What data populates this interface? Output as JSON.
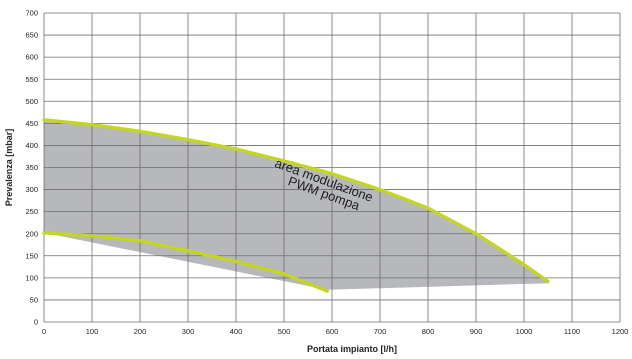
{
  "chart_data": {
    "type": "area",
    "title": "",
    "xlabel": "Portata impianto [l/h]",
    "ylabel": "Prevalenza [mbar]",
    "xlim": [
      0,
      1200
    ],
    "ylim": [
      0,
      700
    ],
    "x_ticks": [
      0,
      100,
      200,
      300,
      400,
      500,
      600,
      700,
      800,
      900,
      1000,
      1100,
      1200
    ],
    "y_ticks": [
      0,
      50,
      100,
      150,
      200,
      250,
      300,
      350,
      400,
      450,
      500,
      550,
      600,
      650,
      700
    ],
    "grid": true,
    "annotation": [
      "area modulazione",
      "PWM pompa"
    ],
    "colors": {
      "area": "#b7b8bc",
      "curve": "#c4d622",
      "grid": "#6f6f6f"
    },
    "series": [
      {
        "x": [
          0,
          100,
          200,
          300,
          400,
          500,
          600,
          700,
          800,
          900,
          1000,
          1050
        ],
        "y": [
          458,
          447,
          432,
          413,
          392,
          365,
          336,
          300,
          258,
          200,
          130,
          92
        ]
      },
      {
        "x": [
          0,
          100,
          200,
          300,
          400,
          500,
          590
        ],
        "y": [
          202,
          195,
          184,
          161,
          137,
          109,
          70
        ]
      }
    ],
    "area_bottom": {
      "x": [
        0,
        590,
        1050
      ],
      "y": [
        202,
        73,
        88
      ]
    }
  }
}
